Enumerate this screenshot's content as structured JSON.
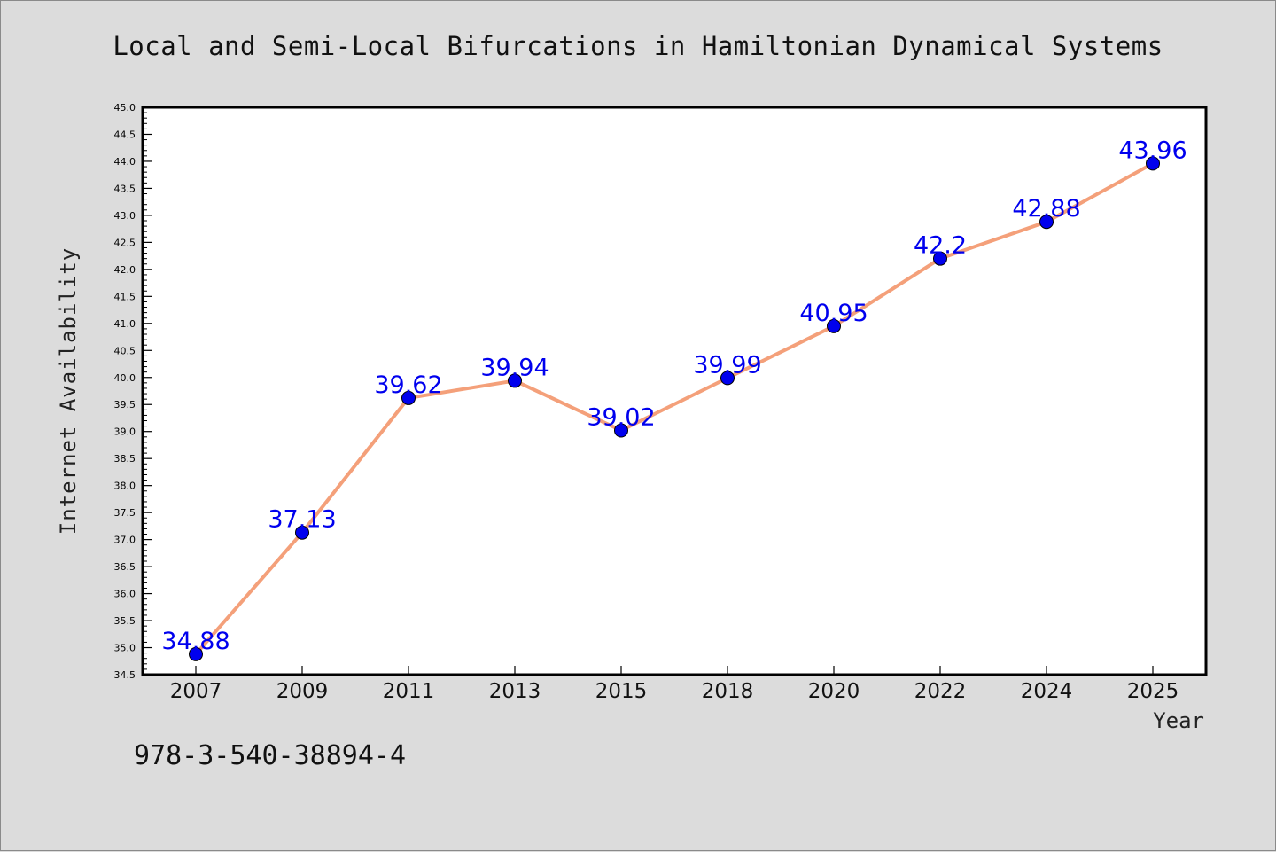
{
  "chart_data": {
    "type": "line",
    "title": "Local and Semi-Local Bifurcations in Hamiltonian Dynamical Systems",
    "xlabel": "Year",
    "ylabel": "Internet Availability",
    "categories": [
      "2007",
      "2009",
      "2011",
      "2013",
      "2015",
      "2018",
      "2020",
      "2022",
      "2024",
      "2025"
    ],
    "series": [
      {
        "values": [
          34.88,
          37.13,
          39.62,
          39.94,
          39.02,
          39.99,
          40.95,
          42.2,
          42.88,
          43.96
        ]
      }
    ],
    "data_labels": [
      "34.88",
      "37.13",
      "39.62",
      "39.94",
      "39.02",
      "39.99",
      "40.95",
      "42.2",
      "42.88",
      "43.96"
    ],
    "ylim": [
      34.5,
      45.0
    ],
    "ytick_step": 0.5,
    "grid": false,
    "legend": "none",
    "colors": {
      "line": "#f4a07a",
      "marker": "#0000ee",
      "label": "#0000ee",
      "background": "#dcdcdc",
      "plot_bg": "#ffffff"
    }
  },
  "footnote": "978-3-540-38894-4"
}
